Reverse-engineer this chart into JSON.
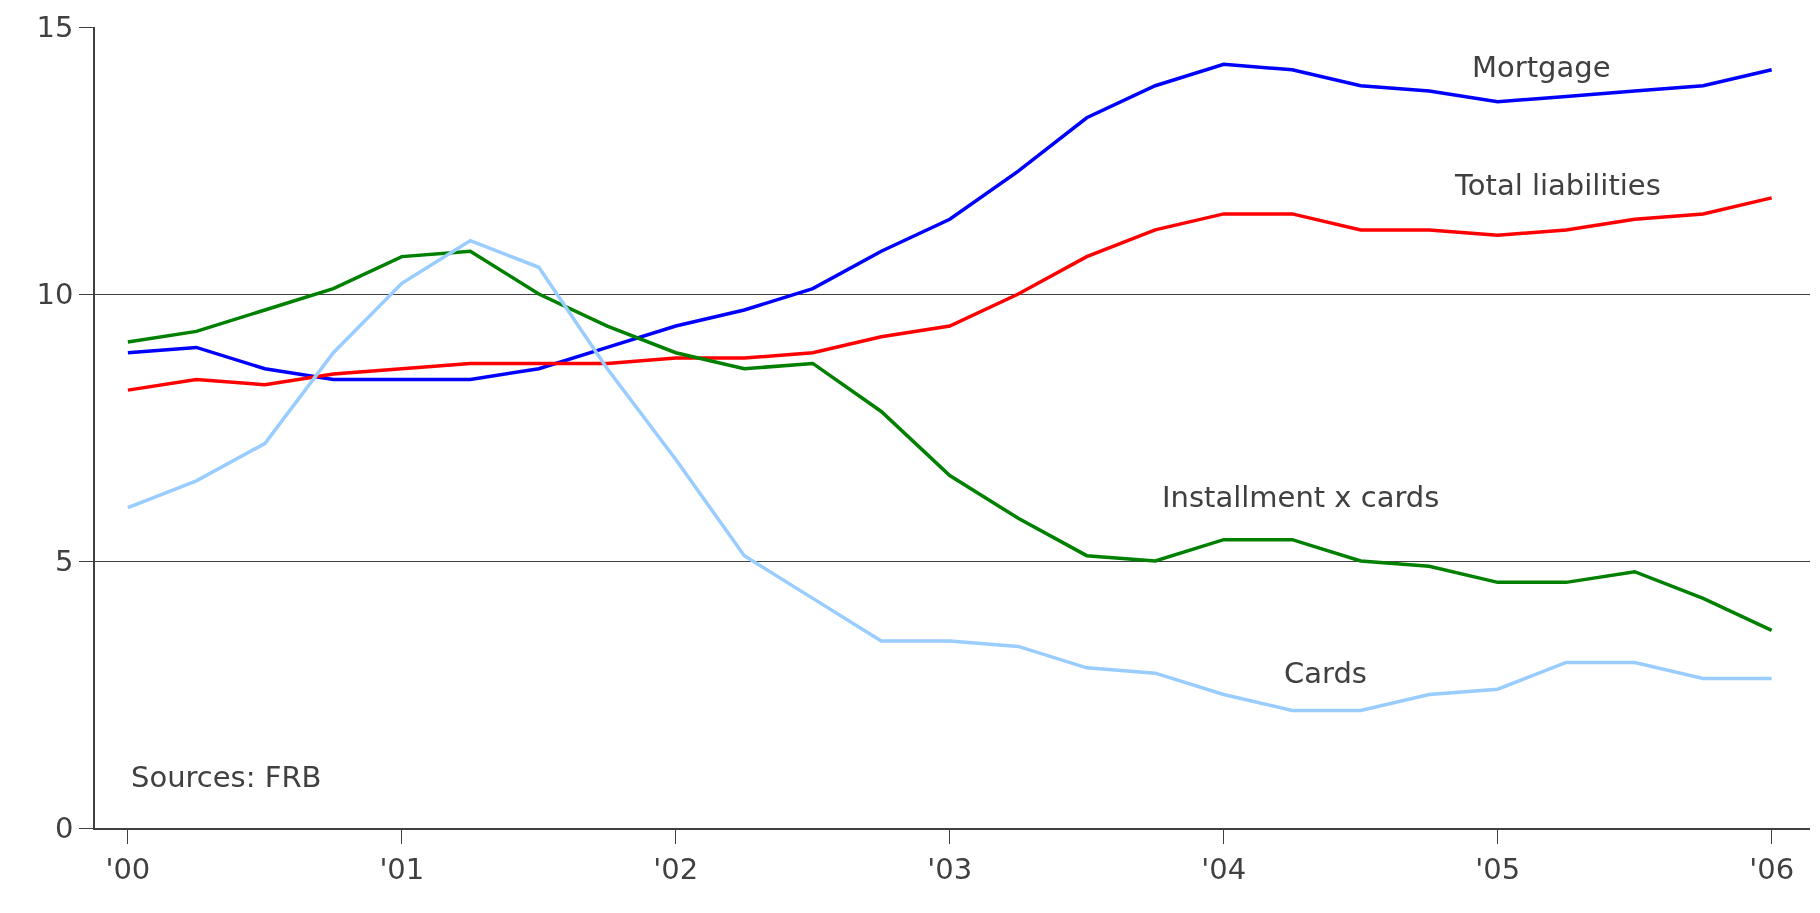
{
  "chart_data": {
    "type": "line",
    "x": [
      2000,
      2000.25,
      2000.5,
      2000.75,
      2001,
      2001.25,
      2001.5,
      2001.75,
      2002,
      2002.25,
      2002.5,
      2002.75,
      2003,
      2003.25,
      2003.5,
      2003.75,
      2004,
      2004.25,
      2004.5,
      2004.75,
      2005,
      2005.25,
      2005.5,
      2005.75,
      2006
    ],
    "series": [
      {
        "name": "Mortgage",
        "color": "#0000ff",
        "values": [
          8.9,
          9.0,
          8.6,
          8.4,
          8.4,
          8.4,
          8.6,
          9.0,
          9.4,
          9.7,
          10.1,
          10.8,
          11.4,
          12.3,
          13.3,
          13.9,
          14.3,
          14.2,
          13.9,
          13.8,
          13.6,
          13.7,
          13.8,
          13.9,
          14.2
        ]
      },
      {
        "name": "Total liabilities",
        "color": "#ff0000",
        "values": [
          8.2,
          8.4,
          8.3,
          8.5,
          8.6,
          8.7,
          8.7,
          8.7,
          8.8,
          8.8,
          8.9,
          9.2,
          9.4,
          10.0,
          10.7,
          11.2,
          11.5,
          11.5,
          11.2,
          11.2,
          11.1,
          11.2,
          11.4,
          11.5,
          11.8
        ]
      },
      {
        "name": "Installment x cards",
        "color": "#008000",
        "values": [
          9.1,
          9.3,
          9.7,
          10.1,
          10.7,
          10.8,
          10.0,
          9.4,
          8.9,
          8.6,
          8.7,
          7.8,
          6.6,
          5.8,
          5.1,
          5.0,
          5.4,
          5.4,
          5.0,
          4.9,
          4.6,
          4.6,
          4.8,
          4.3,
          3.7
        ]
      },
      {
        "name": "Cards",
        "color": "#99ccff",
        "values": [
          6.0,
          6.5,
          7.2,
          8.9,
          10.2,
          11.0,
          10.5,
          8.6,
          6.9,
          5.1,
          4.3,
          3.5,
          3.5,
          3.4,
          3.0,
          2.9,
          2.5,
          2.2,
          2.2,
          2.5,
          2.6,
          3.1,
          3.1,
          2.8,
          2.8
        ]
      }
    ],
    "xlim": [
      1999.88,
      2006.14
    ],
    "xticks": [
      {
        "value": 2000,
        "label": "'00"
      },
      {
        "value": 2001,
        "label": "'01"
      },
      {
        "value": 2002,
        "label": "'02"
      },
      {
        "value": 2003,
        "label": "'03"
      },
      {
        "value": 2004,
        "label": "'04"
      },
      {
        "value": 2005,
        "label": "'05"
      },
      {
        "value": 2006,
        "label": "'06"
      }
    ],
    "ylim": [
      0,
      15
    ],
    "yticks": [
      0,
      5,
      10,
      15
    ],
    "grid": "y",
    "legend": false,
    "marker": "none",
    "line_style": "solid",
    "annotations": [
      "Sources: FRB"
    ]
  }
}
